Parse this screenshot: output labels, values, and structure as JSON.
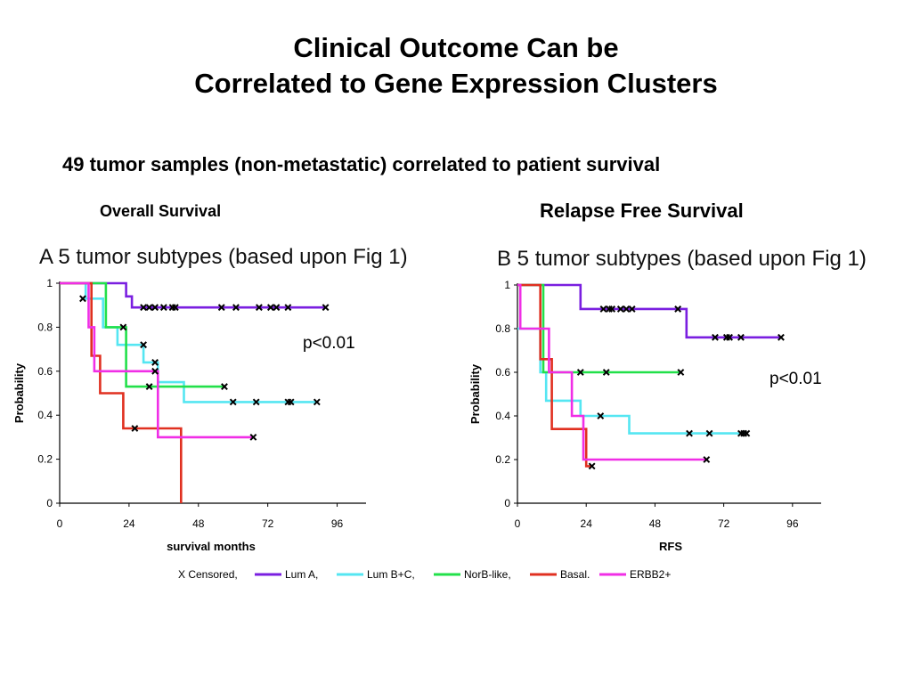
{
  "slide": {
    "title_line1": "Clinical Outcome Can be",
    "title_line2": "Correlated to Gene Expression Clusters",
    "subtitle": "49 tumor samples (non-metastatic) correlated to patient survival",
    "label_left": "Overall Survival",
    "label_right": "Relapse Free Survival"
  },
  "legend": {
    "censored_label": "X Censored,",
    "entries": [
      {
        "label": "Lum A,",
        "color": "#7a1fe0"
      },
      {
        "label": "Lum B+C,",
        "color": "#55e6f2"
      },
      {
        "label": "NorB-like,",
        "color": "#22e04a"
      },
      {
        "label": "Basal.",
        "color": "#e03020"
      },
      {
        "label": "ERBB2+",
        "color": "#f02ee6"
      }
    ]
  },
  "chart_data": [
    {
      "type": "line",
      "panel_letter": "A",
      "panel_title": "5 tumor subtypes (based upon Fig 1)",
      "xlabel": "survival months",
      "ylabel": "Probability",
      "p_value": "p<0.01",
      "xlim": [
        0,
        106
      ],
      "ylim": [
        0,
        1
      ],
      "xticks": [
        0,
        24,
        48,
        72,
        96
      ],
      "yticks": [
        0,
        0.2,
        0.4,
        0.6,
        0.8,
        1
      ],
      "series": [
        {
          "name": "Lum A",
          "color": "#7a1fe0",
          "steps": [
            [
              0,
              1
            ],
            [
              23,
              1
            ],
            [
              23,
              0.94
            ],
            [
              25,
              0.94
            ],
            [
              25,
              0.89
            ],
            [
              92,
              0.89
            ]
          ],
          "censored": [
            [
              29,
              0.89
            ],
            [
              31,
              0.89
            ],
            [
              33,
              0.89
            ],
            [
              36,
              0.89
            ],
            [
              39,
              0.89
            ],
            [
              40,
              0.89
            ],
            [
              56,
              0.89
            ],
            [
              61,
              0.89
            ],
            [
              69,
              0.89
            ],
            [
              73,
              0.89
            ],
            [
              75,
              0.89
            ],
            [
              79,
              0.89
            ],
            [
              92,
              0.89
            ]
          ]
        },
        {
          "name": "Lum B+C",
          "color": "#55e6f2",
          "steps": [
            [
              0,
              1
            ],
            [
              9,
              1
            ],
            [
              9,
              0.93
            ],
            [
              15,
              0.93
            ],
            [
              15,
              0.8
            ],
            [
              20,
              0.8
            ],
            [
              20,
              0.72
            ],
            [
              29,
              0.72
            ],
            [
              29,
              0.64
            ],
            [
              34,
              0.64
            ],
            [
              34,
              0.55
            ],
            [
              43,
              0.55
            ],
            [
              43,
              0.46
            ],
            [
              89,
              0.46
            ]
          ],
          "censored": [
            [
              8,
              0.93
            ],
            [
              22,
              0.8
            ],
            [
              29,
              0.72
            ],
            [
              33,
              0.64
            ],
            [
              60,
              0.46
            ],
            [
              68,
              0.46
            ],
            [
              79,
              0.46
            ],
            [
              80,
              0.46
            ],
            [
              89,
              0.46
            ]
          ]
        },
        {
          "name": "NorB-like",
          "color": "#22e04a",
          "steps": [
            [
              0,
              1
            ],
            [
              16,
              1
            ],
            [
              16,
              0.8
            ],
            [
              23,
              0.8
            ],
            [
              23,
              0.53
            ],
            [
              57,
              0.53
            ]
          ],
          "censored": [
            [
              31,
              0.53
            ],
            [
              57,
              0.53
            ]
          ]
        },
        {
          "name": "Basal",
          "color": "#e03020",
          "steps": [
            [
              0,
              1
            ],
            [
              11,
              1
            ],
            [
              11,
              0.67
            ],
            [
              14,
              0.67
            ],
            [
              14,
              0.5
            ],
            [
              22,
              0.5
            ],
            [
              22,
              0.34
            ],
            [
              42,
              0.34
            ],
            [
              42,
              0
            ]
          ],
          "censored": [
            [
              26,
              0.34
            ]
          ]
        },
        {
          "name": "ERBB2+",
          "color": "#f02ee6",
          "steps": [
            [
              0,
              1
            ],
            [
              10,
              1
            ],
            [
              10,
              0.8
            ],
            [
              12,
              0.8
            ],
            [
              12,
              0.6
            ],
            [
              34,
              0.6
            ],
            [
              34,
              0.3
            ],
            [
              67,
              0.3
            ]
          ],
          "censored": [
            [
              33,
              0.6
            ],
            [
              67,
              0.3
            ]
          ]
        }
      ]
    },
    {
      "type": "line",
      "panel_letter": "B",
      "panel_title": "5 tumor subtypes (based upon Fig 1)",
      "xlabel": "RFS",
      "ylabel": "Probability",
      "p_value": "p<0.01",
      "xlim": [
        0,
        106
      ],
      "ylim": [
        0,
        1
      ],
      "xticks": [
        0,
        24,
        48,
        72,
        96
      ],
      "yticks": [
        0,
        0.2,
        0.4,
        0.6,
        0.8,
        1
      ],
      "series": [
        {
          "name": "Lum A",
          "color": "#7a1fe0",
          "steps": [
            [
              0,
              1
            ],
            [
              22,
              1
            ],
            [
              22,
              0.89
            ],
            [
              59,
              0.89
            ],
            [
              59,
              0.76
            ],
            [
              92,
              0.76
            ]
          ],
          "censored": [
            [
              30,
              0.89
            ],
            [
              32,
              0.89
            ],
            [
              33,
              0.89
            ],
            [
              36,
              0.89
            ],
            [
              38,
              0.89
            ],
            [
              40,
              0.89
            ],
            [
              56,
              0.89
            ],
            [
              69,
              0.76
            ],
            [
              73,
              0.76
            ],
            [
              74,
              0.76
            ],
            [
              78,
              0.76
            ],
            [
              92,
              0.76
            ]
          ]
        },
        {
          "name": "Lum B+C",
          "color": "#55e6f2",
          "steps": [
            [
              0,
              0.8
            ],
            [
              8,
              0.8
            ],
            [
              8,
              0.6
            ],
            [
              10,
              0.6
            ],
            [
              10,
              0.47
            ],
            [
              22,
              0.47
            ],
            [
              22,
              0.4
            ],
            [
              39,
              0.4
            ],
            [
              39,
              0.32
            ],
            [
              80,
              0.32
            ]
          ],
          "censored": [
            [
              29,
              0.4
            ],
            [
              60,
              0.32
            ],
            [
              67,
              0.32
            ],
            [
              78,
              0.32
            ],
            [
              79,
              0.32
            ],
            [
              80,
              0.32
            ]
          ]
        },
        {
          "name": "NorB-like",
          "color": "#22e04a",
          "steps": [
            [
              0,
              1
            ],
            [
              9,
              1
            ],
            [
              9,
              0.6
            ],
            [
              57,
              0.6
            ]
          ],
          "censored": [
            [
              22,
              0.6
            ],
            [
              31,
              0.6
            ],
            [
              57,
              0.6
            ]
          ]
        },
        {
          "name": "Basal",
          "color": "#e03020",
          "steps": [
            [
              0,
              1
            ],
            [
              8,
              1
            ],
            [
              8,
              0.66
            ],
            [
              12,
              0.66
            ],
            [
              12,
              0.34
            ],
            [
              24,
              0.34
            ],
            [
              24,
              0.17
            ],
            [
              26,
              0.17
            ]
          ],
          "censored": [
            [
              26,
              0.17
            ]
          ]
        },
        {
          "name": "ERBB2+",
          "color": "#f02ee6",
          "steps": [
            [
              0,
              1
            ],
            [
              1,
              1
            ],
            [
              1,
              0.8
            ],
            [
              11,
              0.8
            ],
            [
              11,
              0.6
            ],
            [
              19,
              0.6
            ],
            [
              19,
              0.4
            ],
            [
              23,
              0.4
            ],
            [
              23,
              0.2
            ],
            [
              66,
              0.2
            ]
          ],
          "censored": [
            [
              66,
              0.2
            ]
          ]
        }
      ]
    }
  ]
}
